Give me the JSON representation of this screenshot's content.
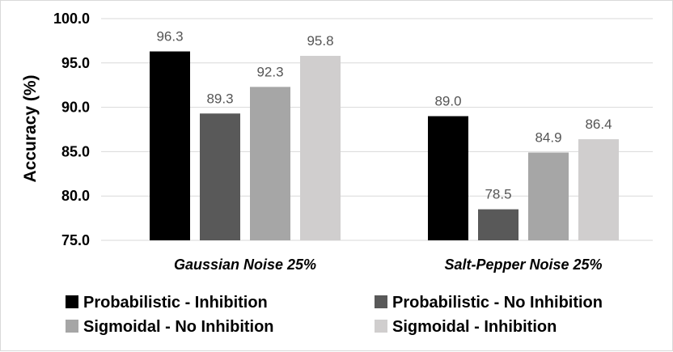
{
  "chart_data": {
    "type": "bar",
    "title": "",
    "xlabel": "",
    "ylabel": "Accuracy (%)",
    "ylim": [
      75.0,
      100.0
    ],
    "yticks": [
      "75.0",
      "80.0",
      "85.0",
      "90.0",
      "95.0",
      "100.0"
    ],
    "categories": [
      "Gaussian Noise 25%",
      "Salt-Pepper Noise 25%"
    ],
    "series": [
      {
        "name": "Probabilistic - Inhibition",
        "color": "#000000",
        "values": [
          96.3,
          89.0
        ],
        "labels": [
          "96.3",
          "89.0"
        ]
      },
      {
        "name": "Probabilistic - No Inhibition",
        "color": "#595959",
        "values": [
          89.3,
          78.5
        ],
        "labels": [
          "89.3",
          "78.5"
        ]
      },
      {
        "name": "Sigmoidal - No Inhibition",
        "color": "#a6a6a6",
        "values": [
          92.3,
          84.9
        ],
        "labels": [
          "92.3",
          "84.9"
        ]
      },
      {
        "name": "Sigmoidal - Inhibition",
        "color": "#d0cece",
        "values": [
          95.8,
          86.4
        ],
        "labels": [
          "95.8",
          "86.4"
        ]
      }
    ],
    "grid": true,
    "legend_position": "bottom"
  }
}
